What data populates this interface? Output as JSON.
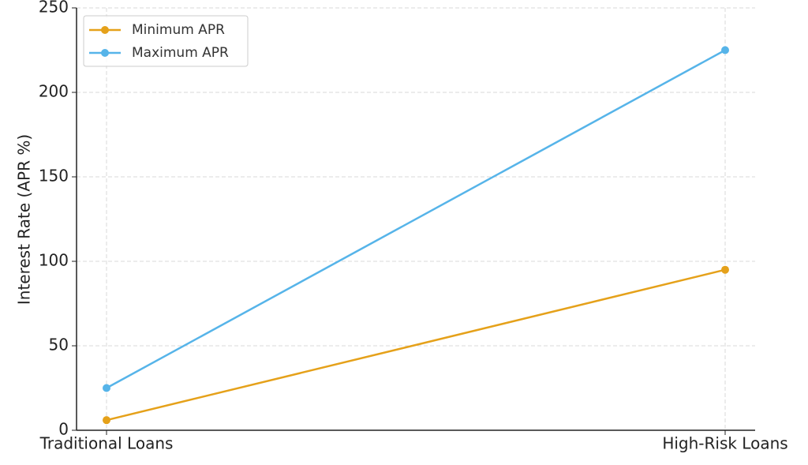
{
  "chart_data": {
    "type": "line",
    "ylabel": "Interest Rate (APR %)",
    "categories": [
      "Traditional Loans",
      "High-Risk Loans"
    ],
    "series": [
      {
        "name": "Minimum APR",
        "color": "#e5a11a",
        "values": [
          6,
          95
        ]
      },
      {
        "name": "Maximum APR",
        "color": "#56b4e9",
        "values": [
          25,
          225
        ]
      }
    ],
    "ylim": [
      0,
      250
    ],
    "yticks": [
      0,
      50,
      100,
      150,
      200,
      250
    ],
    "grid": true,
    "legend": "upper left"
  }
}
